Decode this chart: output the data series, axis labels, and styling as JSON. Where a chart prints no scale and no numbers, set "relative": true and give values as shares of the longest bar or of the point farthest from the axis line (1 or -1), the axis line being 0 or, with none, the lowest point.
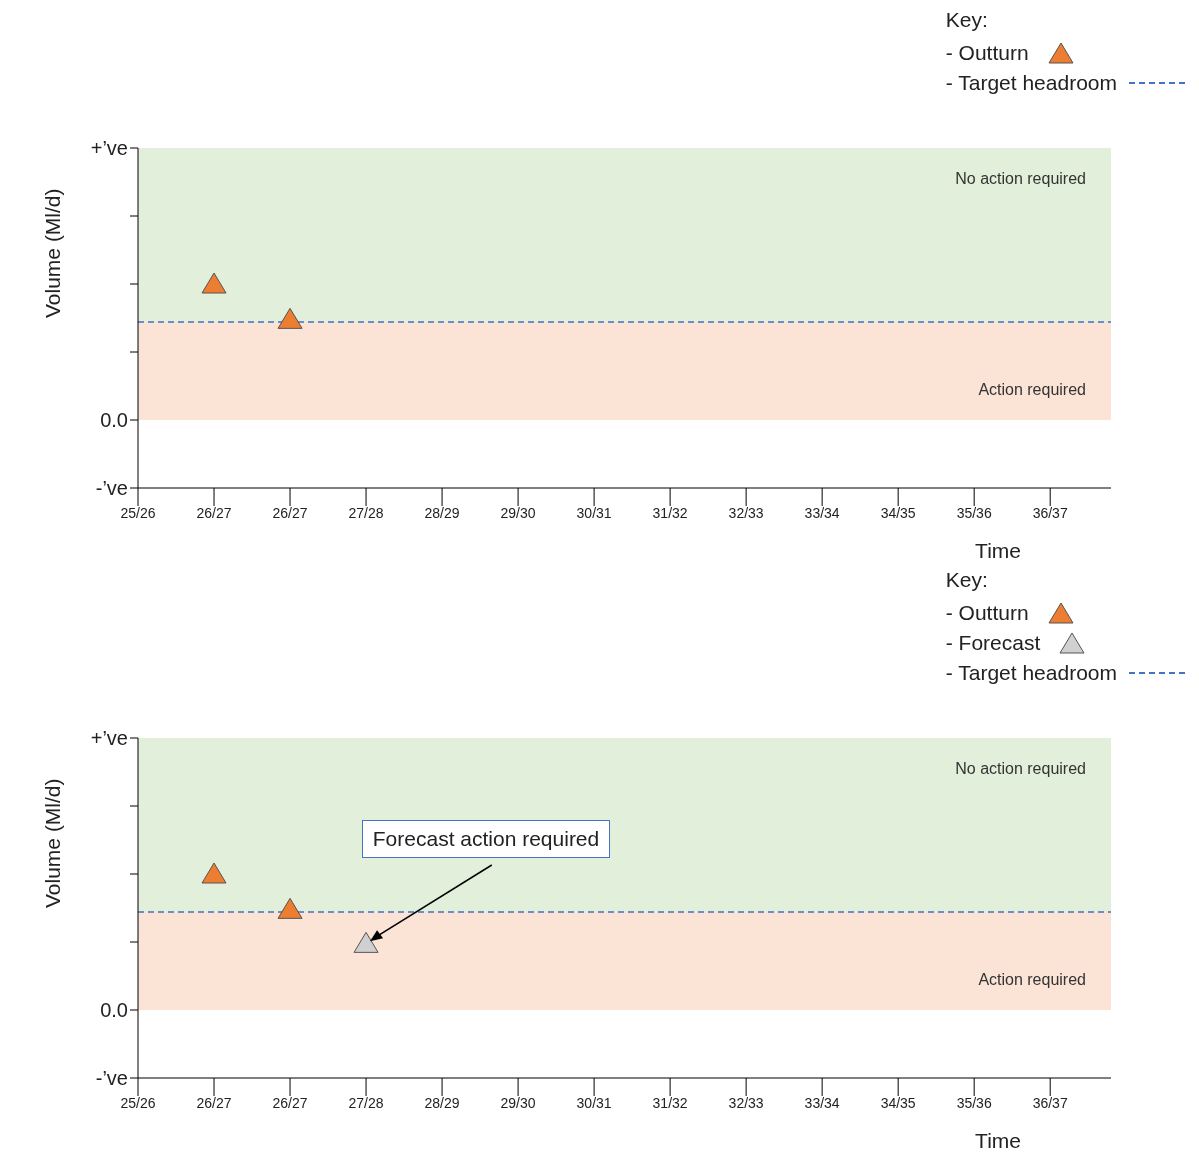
{
  "chart_data": [
    {
      "type": "scatter",
      "relative": true,
      "marker": "triangle",
      "legend": "top right",
      "legend_title": "Key:",
      "xlabel": "Time",
      "ylabel": "Volume (Ml/d)",
      "categories": [
        "25/26",
        "26/27",
        "26/27",
        "27/28",
        "28/29",
        "29/30",
        "30/31",
        "31/32",
        "32/33",
        "33/34",
        "34/35",
        "35/36",
        "36/37"
      ],
      "annotations": [
        "+’ve",
        "0.0",
        "-’ve"
      ],
      "series": [
        {
          "name": "- Outturn",
          "color": "#ed7d31",
          "values": [
            null,
            1,
            0.74,
            null,
            null,
            null,
            null,
            null,
            null,
            null,
            null,
            null,
            null
          ]
        }
      ],
      "ref_lines": [
        {
          "axis": "y",
          "value": 0.72,
          "label": "- Target headroom",
          "color": "#4472c4",
          "line_style": "dashed"
        }
      ],
      "bands": [
        {
          "axis": "y",
          "from": 0.72,
          "to": 2.0,
          "label": "No action required",
          "color": "#e2efda"
        },
        {
          "axis": "y",
          "from": 0,
          "to": 0.72,
          "label": "Action required",
          "color": "#fbe3d6"
        }
      ]
    },
    {
      "type": "scatter",
      "relative": true,
      "marker": "triangle",
      "legend": "top right",
      "legend_title": "Key:",
      "xlabel": "Time",
      "ylabel": "Volume (Ml/d)",
      "categories": [
        "25/26",
        "26/27",
        "26/27",
        "27/28",
        "28/29",
        "29/30",
        "30/31",
        "31/32",
        "32/33",
        "33/34",
        "34/35",
        "35/36",
        "36/37"
      ],
      "series": [
        {
          "name": "- Outturn",
          "color": "#ed7d31",
          "values": [
            null,
            1,
            0.74,
            null,
            null,
            null,
            null,
            null,
            null,
            null,
            null,
            null,
            null
          ]
        },
        {
          "name": "- Forecast",
          "color": "#d0d0d0",
          "values": [
            null,
            null,
            null,
            0.49,
            null,
            null,
            null,
            null,
            null,
            null,
            null,
            null,
            null
          ]
        }
      ],
      "ref_lines": [
        {
          "axis": "y",
          "value": 0.72,
          "label": "- Target headroom",
          "color": "#4472c4",
          "line_style": "dashed"
        }
      ],
      "bands": [
        {
          "axis": "y",
          "from": 0.72,
          "to": 2.0,
          "label": "No action required",
          "color": "#e2efda"
        },
        {
          "axis": "y",
          "from": 0,
          "to": 0.72,
          "label": "Action required",
          "color": "#fbe3d6"
        }
      ],
      "annotations": [
        "+’ve",
        "0.0",
        "-’ve",
        {
          "text": "Forecast action required",
          "x": "27/28",
          "y": 0.49
        }
      ]
    }
  ]
}
